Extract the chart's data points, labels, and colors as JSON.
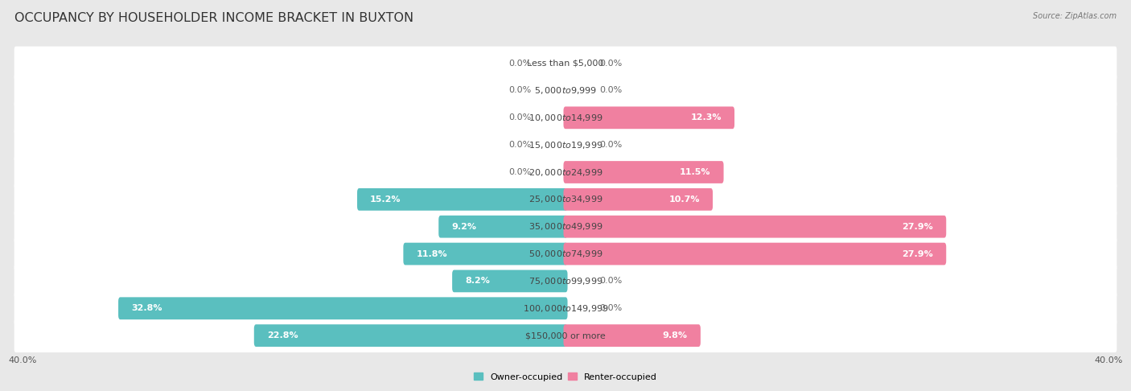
{
  "title": "OCCUPANCY BY HOUSEHOLDER INCOME BRACKET IN BUXTON",
  "source": "Source: ZipAtlas.com",
  "categories": [
    "Less than $5,000",
    "$5,000 to $9,999",
    "$10,000 to $14,999",
    "$15,000 to $19,999",
    "$20,000 to $24,999",
    "$25,000 to $34,999",
    "$35,000 to $49,999",
    "$50,000 to $74,999",
    "$75,000 to $99,999",
    "$100,000 to $149,999",
    "$150,000 or more"
  ],
  "owner_values": [
    0.0,
    0.0,
    0.0,
    0.0,
    0.0,
    15.2,
    9.2,
    11.8,
    8.2,
    32.8,
    22.8
  ],
  "renter_values": [
    0.0,
    0.0,
    12.3,
    0.0,
    11.5,
    10.7,
    27.9,
    27.9,
    0.0,
    0.0,
    9.8
  ],
  "owner_color": "#5abfbf",
  "renter_color": "#f080a0",
  "bg_color": "#e8e8e8",
  "row_color_even": "#f5f5f5",
  "row_color_odd": "#ebebeb",
  "axis_max": 40.0,
  "legend_owner": "Owner-occupied",
  "legend_renter": "Renter-occupied",
  "title_fontsize": 11.5,
  "label_fontsize": 8.0,
  "category_fontsize": 8.0,
  "axis_label_fontsize": 8.0
}
